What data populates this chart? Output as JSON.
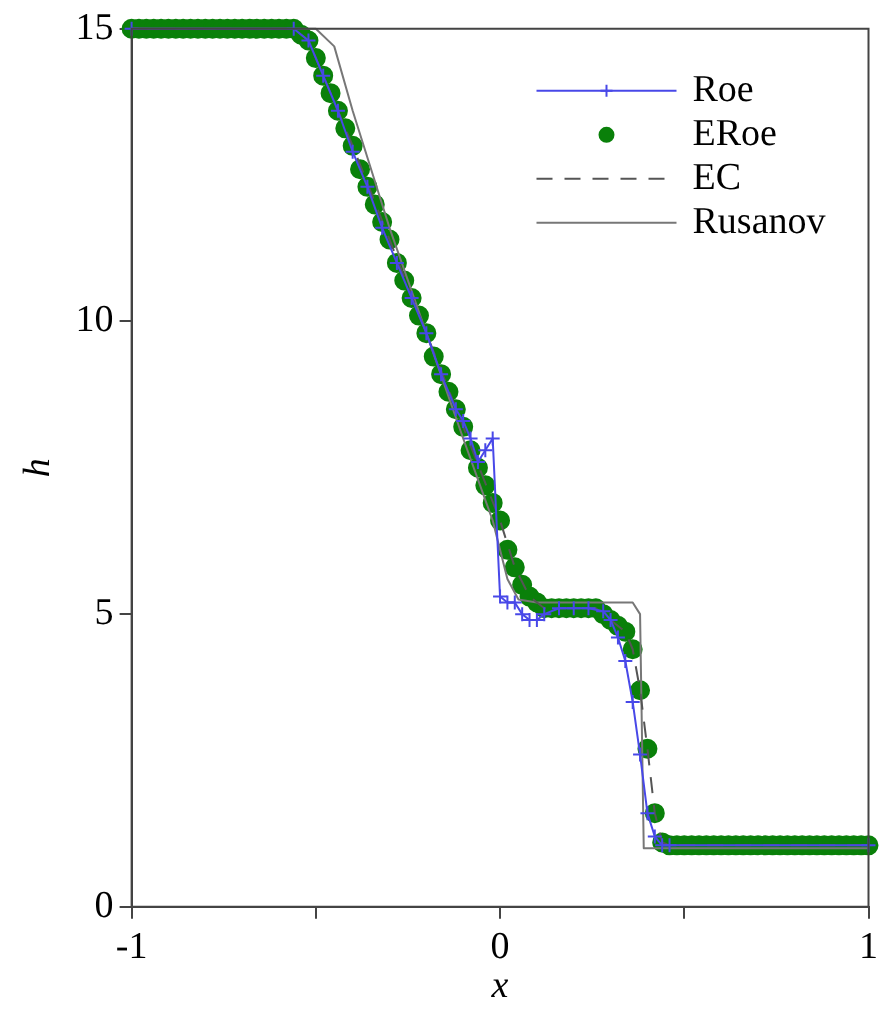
{
  "chart_data": {
    "type": "line",
    "xlabel": "x",
    "ylabel": "h",
    "xlim": [
      -1,
      1
    ],
    "ylim": [
      0,
      15
    ],
    "xticks": [
      -1,
      {
        "value": -0.5,
        "label": null
      },
      0,
      {
        "value": 0.5,
        "label": null
      },
      1
    ],
    "yticks": [
      0,
      5,
      10,
      15
    ],
    "grid": false,
    "legend": "top right",
    "series": [
      {
        "name": "Roe",
        "color": "#4848e8",
        "marker": "cross",
        "line_style": "solid",
        "x": [
          -1,
          -0.56,
          -0.52,
          -0.48,
          -0.44,
          -0.4,
          -0.36,
          -0.32,
          -0.28,
          -0.24,
          -0.2,
          -0.16,
          -0.12,
          -0.1,
          -0.08,
          -0.06,
          -0.04,
          -0.02,
          0,
          0.02,
          0.04,
          0.06,
          0.08,
          0.1,
          0.12,
          0.16,
          0.2,
          0.24,
          0.28,
          0.3,
          0.32,
          0.34,
          0.36,
          0.38,
          0.4,
          0.42,
          0.44,
          0.46,
          1
        ],
        "values": [
          15,
          15,
          14.8,
          14.2,
          13.6,
          12.9,
          12.3,
          11.6,
          11.0,
          10.4,
          9.8,
          9.1,
          8.5,
          8.3,
          8.0,
          7.6,
          7.8,
          8.0,
          5.3,
          5.2,
          5.2,
          5.0,
          4.9,
          4.9,
          5.0,
          5.1,
          5.1,
          5.1,
          5.05,
          4.9,
          4.6,
          4.2,
          3.5,
          2.6,
          1.6,
          1.2,
          1.05,
          1.05,
          1.05
        ]
      },
      {
        "name": "ERoe",
        "type": "scatter",
        "color": "#0a800a",
        "marker": "circle",
        "x": [
          -1,
          -0.98,
          -0.96,
          -0.94,
          -0.92,
          -0.9,
          -0.88,
          -0.86,
          -0.84,
          -0.82,
          -0.8,
          -0.78,
          -0.76,
          -0.74,
          -0.72,
          -0.7,
          -0.68,
          -0.66,
          -0.64,
          -0.62,
          -0.6,
          -0.58,
          -0.56,
          -0.54,
          -0.52,
          -0.5,
          -0.48,
          -0.46,
          -0.44,
          -0.42,
          -0.4,
          -0.38,
          -0.36,
          -0.34,
          -0.32,
          -0.3,
          -0.28,
          -0.26,
          -0.24,
          -0.22,
          -0.2,
          -0.18,
          -0.16,
          -0.14,
          -0.12,
          -0.1,
          -0.08,
          -0.06,
          -0.04,
          -0.02,
          0,
          0.02,
          0.04,
          0.06,
          0.08,
          0.1,
          0.12,
          0.14,
          0.16,
          0.18,
          0.2,
          0.22,
          0.24,
          0.26,
          0.28,
          0.3,
          0.32,
          0.34,
          0.36,
          0.38,
          0.4,
          0.42,
          0.44,
          0.46,
          0.48,
          0.5,
          0.52,
          0.54,
          0.56,
          0.58,
          0.6,
          0.62,
          0.64,
          0.66,
          0.68,
          0.7,
          0.72,
          0.74,
          0.76,
          0.78,
          0.8,
          0.82,
          0.84,
          0.86,
          0.88,
          0.9,
          0.92,
          0.94,
          0.96,
          0.98,
          1
        ],
        "values": [
          15,
          15,
          15,
          15,
          15,
          15,
          15,
          15,
          15,
          15,
          15,
          15,
          15,
          15,
          15,
          15,
          15,
          15,
          15,
          15,
          15,
          15,
          15,
          14.9,
          14.8,
          14.5,
          14.2,
          13.9,
          13.6,
          13.3,
          13.0,
          12.6,
          12.3,
          12.0,
          11.7,
          11.4,
          11.0,
          10.7,
          10.4,
          10.1,
          9.8,
          9.4,
          9.1,
          8.8,
          8.5,
          8.2,
          7.8,
          7.5,
          7.2,
          6.9,
          6.6,
          6.1,
          5.8,
          5.5,
          5.3,
          5.2,
          5.1,
          5.1,
          5.1,
          5.1,
          5.1,
          5.1,
          5.1,
          5.1,
          5.0,
          4.9,
          4.8,
          4.7,
          4.4,
          3.7,
          2.7,
          1.6,
          1.1,
          1.05,
          1.05,
          1.05,
          1.05,
          1.05,
          1.05,
          1.05,
          1.05,
          1.05,
          1.05,
          1.05,
          1.05,
          1.05,
          1.05,
          1.05,
          1.05,
          1.05,
          1.05,
          1.05,
          1.05,
          1.05,
          1.05,
          1.05,
          1.05,
          1.05,
          1.05,
          1.05,
          1.05
        ]
      },
      {
        "name": "EC",
        "color": "#555555",
        "marker": "none",
        "line_style": "dashed",
        "x": [
          -1,
          -0.56,
          -0.52,
          -0.48,
          -0.44,
          -0.4,
          -0.3,
          -0.2,
          -0.1,
          0,
          0.04,
          0.08,
          0.12,
          0.26,
          0.3,
          0.34,
          0.36,
          0.38,
          0.4,
          0.42,
          0.44,
          0.46,
          1
        ],
        "values": [
          15,
          15,
          14.8,
          14.2,
          13.6,
          13.0,
          11.4,
          9.8,
          8.2,
          6.6,
          5.8,
          5.3,
          5.1,
          5.1,
          4.9,
          4.7,
          4.4,
          3.7,
          2.7,
          1.6,
          1.1,
          1.05,
          1.05
        ]
      },
      {
        "name": "Rusanov",
        "color": "#777777",
        "marker": "none",
        "line_style": "solid",
        "x": [
          -1,
          -0.5,
          -0.45,
          -0.4,
          -0.3,
          -0.2,
          -0.1,
          -0.02,
          0.02,
          0.05,
          0.1,
          0.36,
          0.38,
          0.39,
          1
        ],
        "values": [
          15,
          15,
          14.7,
          13.6,
          11.6,
          9.8,
          8.0,
          6.6,
          5.6,
          5.25,
          5.2,
          5.2,
          5.0,
          1.0,
          1.0
        ]
      }
    ]
  }
}
